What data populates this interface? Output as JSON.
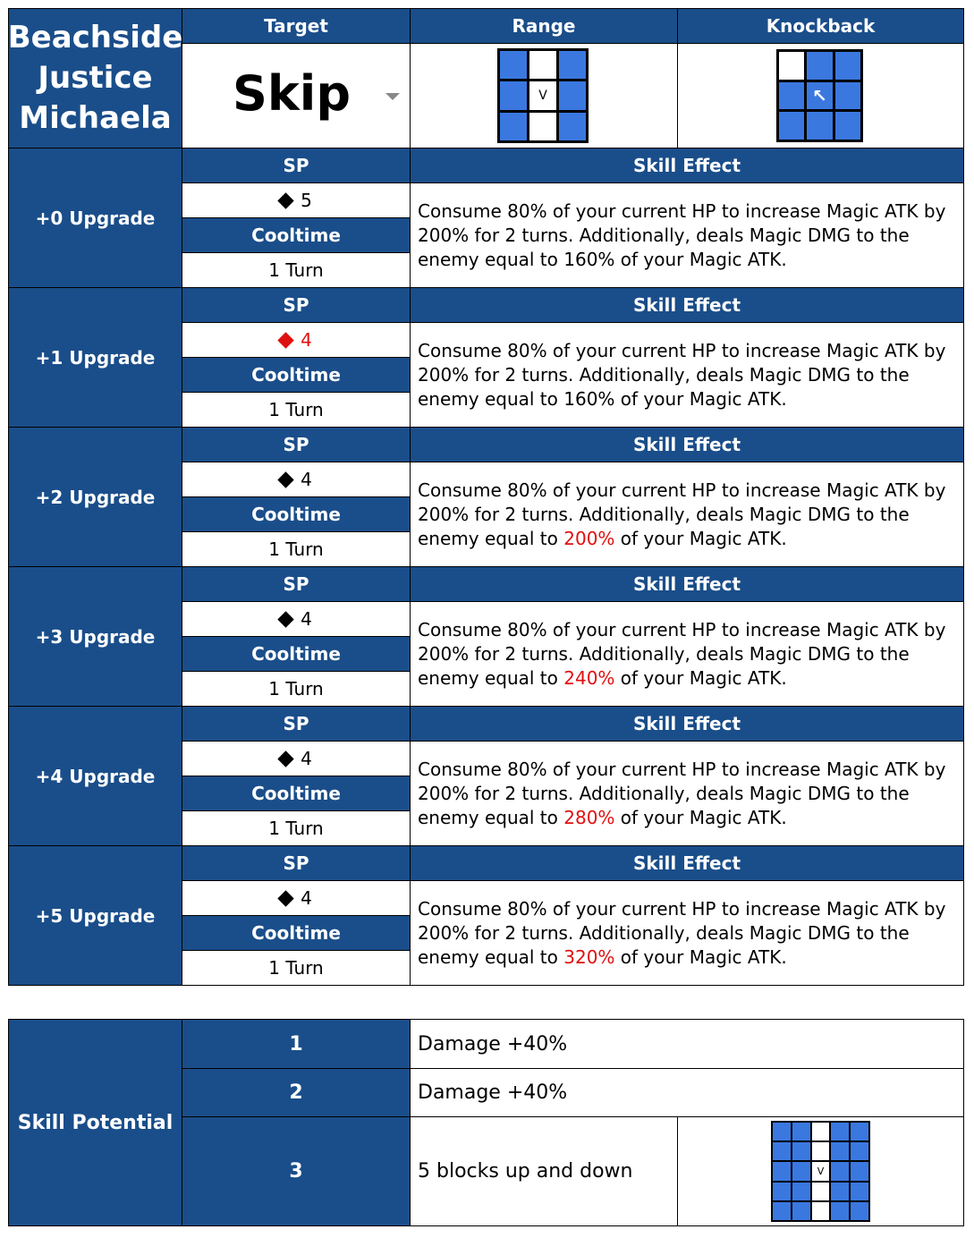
{
  "header": {
    "title_lines": [
      "Beachside",
      "Justice",
      "Michaela"
    ],
    "target_label": "Target",
    "target_value": "Skip",
    "range_label": "Range",
    "knockback_label": "Knockback",
    "range_marker": "V",
    "knockback_marker": "↖"
  },
  "labels": {
    "sp": "SP",
    "cooltime": "Cooltime",
    "skill_effect": "Skill Effect"
  },
  "upgrades": [
    {
      "name": "+0 Upgrade",
      "sp": "5",
      "sp_changed": false,
      "cooltime": "1 Turn",
      "effect_a": "Consume 80% of your current HP to increase Magic ATK by 200% for 2 turns. Additionally, deals Magic DMG to the enemy equal to ",
      "effect_pct": "160%",
      "pct_changed": false,
      "effect_b": " of your Magic ATK."
    },
    {
      "name": "+1 Upgrade",
      "sp": "4",
      "sp_changed": true,
      "cooltime": "1 Turn",
      "effect_a": "Consume 80% of your current HP to increase Magic ATK by 200% for 2 turns. Additionally, deals Magic DMG to the enemy equal to ",
      "effect_pct": "160%",
      "pct_changed": false,
      "effect_b": " of your Magic ATK."
    },
    {
      "name": "+2 Upgrade",
      "sp": "4",
      "sp_changed": false,
      "cooltime": "1 Turn",
      "effect_a": "Consume 80% of your current HP to increase Magic ATK by 200% for 2 turns. Additionally, deals Magic DMG to the enemy equal to ",
      "effect_pct": "200%",
      "pct_changed": true,
      "effect_b": " of your Magic ATK."
    },
    {
      "name": "+3 Upgrade",
      "sp": "4",
      "sp_changed": false,
      "cooltime": "1 Turn",
      "effect_a": "Consume 80% of your current HP to increase Magic ATK by 200% for 2 turns. Additionally, deals Magic DMG to the enemy equal to ",
      "effect_pct": "240%",
      "pct_changed": true,
      "effect_b": " of your Magic ATK."
    },
    {
      "name": "+4 Upgrade",
      "sp": "4",
      "sp_changed": false,
      "cooltime": "1 Turn",
      "effect_a": "Consume 80% of your current HP to increase Magic ATK by 200% for 2 turns. Additionally, deals Magic DMG to the enemy equal to ",
      "effect_pct": "280%",
      "pct_changed": true,
      "effect_b": " of your Magic ATK."
    },
    {
      "name": "+5 Upgrade",
      "sp": "4",
      "sp_changed": false,
      "cooltime": "1 Turn",
      "effect_a": "Consume 80% of your current HP to increase Magic ATK by 200% for 2 turns. Additionally, deals Magic DMG to the enemy equal to ",
      "effect_pct": "320%",
      "pct_changed": true,
      "effect_b": " of your Magic ATK."
    }
  ],
  "potential": {
    "label": "Skill Potential",
    "rows": [
      {
        "num": "1",
        "text": "Damage +40%"
      },
      {
        "num": "2",
        "text": "Damage +40%"
      },
      {
        "num": "3",
        "text": "5 blocks up and down"
      }
    ],
    "grid_marker": "V"
  },
  "colors": {
    "header_blue": "#1a4e8a",
    "tile_blue": "#3a78e0",
    "highlight_red": "#e01010"
  }
}
